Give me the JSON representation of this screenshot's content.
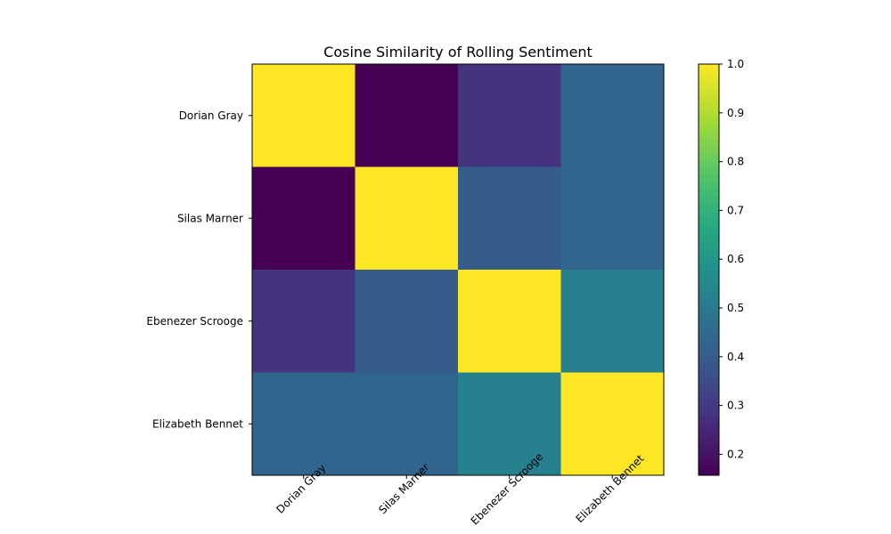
{
  "chart_data": {
    "type": "heatmap",
    "title": "Cosine Similarity of Rolling Sentiment",
    "xlabel": "",
    "ylabel": "",
    "rows": [
      "Dorian Gray",
      "Silas Marner",
      "Ebenezer Scrooge",
      "Elizabeth Bennet"
    ],
    "columns": [
      "Dorian Gray",
      "Silas Marner",
      "Ebenezer Scrooge",
      "Elizabeth Bennet"
    ],
    "values": [
      [
        1.0,
        0.157,
        0.28,
        0.43
      ],
      [
        0.157,
        1.0,
        0.4,
        0.43
      ],
      [
        0.28,
        0.4,
        1.0,
        0.52
      ],
      [
        0.43,
        0.43,
        0.52,
        1.0
      ]
    ],
    "colormap": "viridis",
    "colorbar": {
      "vmin": 0.157,
      "vmax": 1.0,
      "ticks": [
        0.2,
        0.3,
        0.4,
        0.5,
        0.6,
        0.7,
        0.8,
        0.9,
        1.0
      ],
      "tick_labels": [
        "0.2",
        "0.3",
        "0.4",
        "0.5",
        "0.6",
        "0.7",
        "0.8",
        "0.9",
        "1.0"
      ]
    },
    "grid": false,
    "x_tick_rotation_deg": 45
  }
}
